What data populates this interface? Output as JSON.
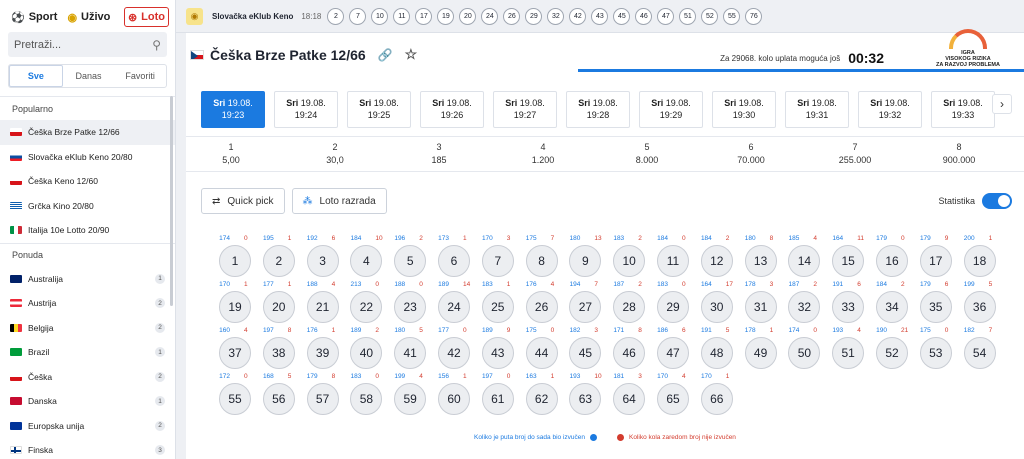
{
  "sidebar": {
    "tabs": [
      {
        "label": "Sport",
        "icon": "soccer-ball-icon"
      },
      {
        "label": "Uživo",
        "icon": "live-signal-icon"
      },
      {
        "label": "Loto",
        "icon": "lotto-icon"
      }
    ],
    "search_placeholder": "Pretraži...",
    "segments": [
      "Sve",
      "Danas",
      "Favoriti"
    ],
    "popular_title": "Popularno",
    "popular": [
      {
        "label": "Češka Brze Patke 12/66",
        "flag": "cz"
      },
      {
        "label": "Slovačka eKlub Keno 20/80",
        "flag": "sk"
      },
      {
        "label": "Češka Keno 12/60",
        "flag": "cz"
      },
      {
        "label": "Grčka Kino 20/80",
        "flag": "gr"
      },
      {
        "label": "Italija 10e Lotto 20/90",
        "flag": "it"
      }
    ],
    "offer_title": "Ponuda",
    "offer": [
      {
        "label": "Australija",
        "count": "1",
        "flag": "au"
      },
      {
        "label": "Austrija",
        "count": "2",
        "flag": "at"
      },
      {
        "label": "Belgija",
        "count": "2",
        "flag": "be"
      },
      {
        "label": "Brazil",
        "count": "1",
        "flag": "br"
      },
      {
        "label": "Češka",
        "count": "2",
        "flag": "cz"
      },
      {
        "label": "Danska",
        "count": "1",
        "flag": "dk"
      },
      {
        "label": "Europska unija",
        "count": "2",
        "flag": "eu"
      },
      {
        "label": "Finska",
        "count": "3",
        "flag": "fi"
      }
    ]
  },
  "topbar": {
    "title": "Slovačka eKlub Keno",
    "time": "18:18",
    "balls": [
      "2",
      "7",
      "10",
      "11",
      "17",
      "19",
      "20",
      "24",
      "26",
      "29",
      "32",
      "42",
      "43",
      "45",
      "46",
      "47",
      "51",
      "52",
      "55",
      "76"
    ]
  },
  "header": {
    "title": "Češka Brze Patke 12/66",
    "countdown_label": "Za 29068. kolo uplata moguća još",
    "countdown": "00:32",
    "risk": [
      "IGRA",
      "VISOKOG RIZIKA",
      "ZA RAZVOJ PROBLEMA"
    ]
  },
  "draws": [
    {
      "day": "Sri",
      "date": "19.08.",
      "time": "19:23"
    },
    {
      "day": "Sri",
      "date": "19.08.",
      "time": "19:24"
    },
    {
      "day": "Sri",
      "date": "19.08.",
      "time": "19:25"
    },
    {
      "day": "Sri",
      "date": "19.08.",
      "time": "19:26"
    },
    {
      "day": "Sri",
      "date": "19.08.",
      "time": "19:27"
    },
    {
      "day": "Sri",
      "date": "19.08.",
      "time": "19:28"
    },
    {
      "day": "Sri",
      "date": "19.08.",
      "time": "19:29"
    },
    {
      "day": "Sri",
      "date": "19.08.",
      "time": "19:30"
    },
    {
      "day": "Sri",
      "date": "19.08.",
      "time": "19:31"
    },
    {
      "day": "Sri",
      "date": "19.08.",
      "time": "19:32"
    },
    {
      "day": "Sri",
      "date": "19.08.",
      "time": "19:33"
    }
  ],
  "odds": [
    {
      "n": "1",
      "v": "5,00"
    },
    {
      "n": "2",
      "v": "30,0"
    },
    {
      "n": "3",
      "v": "185"
    },
    {
      "n": "4",
      "v": "1.200"
    },
    {
      "n": "5",
      "v": "8.000"
    },
    {
      "n": "6",
      "v": "70.000"
    },
    {
      "n": "7",
      "v": "255.000"
    },
    {
      "n": "8",
      "v": "900.000"
    }
  ],
  "controls": {
    "quick_pick": "Quick pick",
    "loto_razrada": "Loto razrada",
    "statistika": "Statistika"
  },
  "numbers": [
    {
      "n": "1",
      "c": "174",
      "r": "0"
    },
    {
      "n": "2",
      "c": "195",
      "r": "1"
    },
    {
      "n": "3",
      "c": "192",
      "r": "6"
    },
    {
      "n": "4",
      "c": "184",
      "r": "10"
    },
    {
      "n": "5",
      "c": "196",
      "r": "2"
    },
    {
      "n": "6",
      "c": "173",
      "r": "1"
    },
    {
      "n": "7",
      "c": "170",
      "r": "3"
    },
    {
      "n": "8",
      "c": "175",
      "r": "7"
    },
    {
      "n": "9",
      "c": "180",
      "r": "13"
    },
    {
      "n": "10",
      "c": "183",
      "r": "2"
    },
    {
      "n": "11",
      "c": "184",
      "r": "0"
    },
    {
      "n": "12",
      "c": "184",
      "r": "2"
    },
    {
      "n": "13",
      "c": "180",
      "r": "8"
    },
    {
      "n": "14",
      "c": "185",
      "r": "4"
    },
    {
      "n": "15",
      "c": "164",
      "r": "11"
    },
    {
      "n": "16",
      "c": "179",
      "r": "0"
    },
    {
      "n": "17",
      "c": "179",
      "r": "9"
    },
    {
      "n": "18",
      "c": "200",
      "r": "1"
    },
    {
      "n": "19",
      "c": "170",
      "r": "1"
    },
    {
      "n": "20",
      "c": "177",
      "r": "1"
    },
    {
      "n": "21",
      "c": "188",
      "r": "4"
    },
    {
      "n": "22",
      "c": "213",
      "r": "0"
    },
    {
      "n": "23",
      "c": "188",
      "r": "0"
    },
    {
      "n": "24",
      "c": "189",
      "r": "14"
    },
    {
      "n": "25",
      "c": "183",
      "r": "1"
    },
    {
      "n": "26",
      "c": "176",
      "r": "4"
    },
    {
      "n": "27",
      "c": "194",
      "r": "7"
    },
    {
      "n": "28",
      "c": "187",
      "r": "2"
    },
    {
      "n": "29",
      "c": "183",
      "r": "0"
    },
    {
      "n": "30",
      "c": "164",
      "r": "17"
    },
    {
      "n": "31",
      "c": "178",
      "r": "3"
    },
    {
      "n": "32",
      "c": "187",
      "r": "2"
    },
    {
      "n": "33",
      "c": "191",
      "r": "6"
    },
    {
      "n": "34",
      "c": "184",
      "r": "2"
    },
    {
      "n": "35",
      "c": "179",
      "r": "6"
    },
    {
      "n": "36",
      "c": "199",
      "r": "5"
    },
    {
      "n": "37",
      "c": "160",
      "r": "4"
    },
    {
      "n": "38",
      "c": "197",
      "r": "8"
    },
    {
      "n": "39",
      "c": "176",
      "r": "1"
    },
    {
      "n": "40",
      "c": "189",
      "r": "2"
    },
    {
      "n": "41",
      "c": "180",
      "r": "5"
    },
    {
      "n": "42",
      "c": "177",
      "r": "0"
    },
    {
      "n": "43",
      "c": "189",
      "r": "9"
    },
    {
      "n": "44",
      "c": "175",
      "r": "0"
    },
    {
      "n": "45",
      "c": "182",
      "r": "3"
    },
    {
      "n": "46",
      "c": "171",
      "r": "8"
    },
    {
      "n": "47",
      "c": "186",
      "r": "6"
    },
    {
      "n": "48",
      "c": "191",
      "r": "5"
    },
    {
      "n": "49",
      "c": "178",
      "r": "1"
    },
    {
      "n": "50",
      "c": "174",
      "r": "0"
    },
    {
      "n": "51",
      "c": "193",
      "r": "4"
    },
    {
      "n": "52",
      "c": "190",
      "r": "21"
    },
    {
      "n": "53",
      "c": "175",
      "r": "0"
    },
    {
      "n": "54",
      "c": "182",
      "r": "7"
    },
    {
      "n": "55",
      "c": "172",
      "r": "0"
    },
    {
      "n": "56",
      "c": "168",
      "r": "5"
    },
    {
      "n": "57",
      "c": "179",
      "r": "8"
    },
    {
      "n": "58",
      "c": "183",
      "r": "0"
    },
    {
      "n": "59",
      "c": "199",
      "r": "4"
    },
    {
      "n": "60",
      "c": "156",
      "r": "1"
    },
    {
      "n": "61",
      "c": "197",
      "r": "0"
    },
    {
      "n": "62",
      "c": "163",
      "r": "1"
    },
    {
      "n": "63",
      "c": "193",
      "r": "10"
    },
    {
      "n": "64",
      "c": "181",
      "r": "3"
    },
    {
      "n": "65",
      "c": "170",
      "r": "4"
    },
    {
      "n": "66",
      "c": "170",
      "r": "1"
    }
  ],
  "legend": {
    "blue": "Koliko je puta broj do sada bio izvučen",
    "red": "Koliko kola zaredom broj nije izvučen"
  },
  "colors": {
    "accent": "#1b7ae0",
    "alert": "#d33c2e",
    "loto": "#d8302b"
  }
}
